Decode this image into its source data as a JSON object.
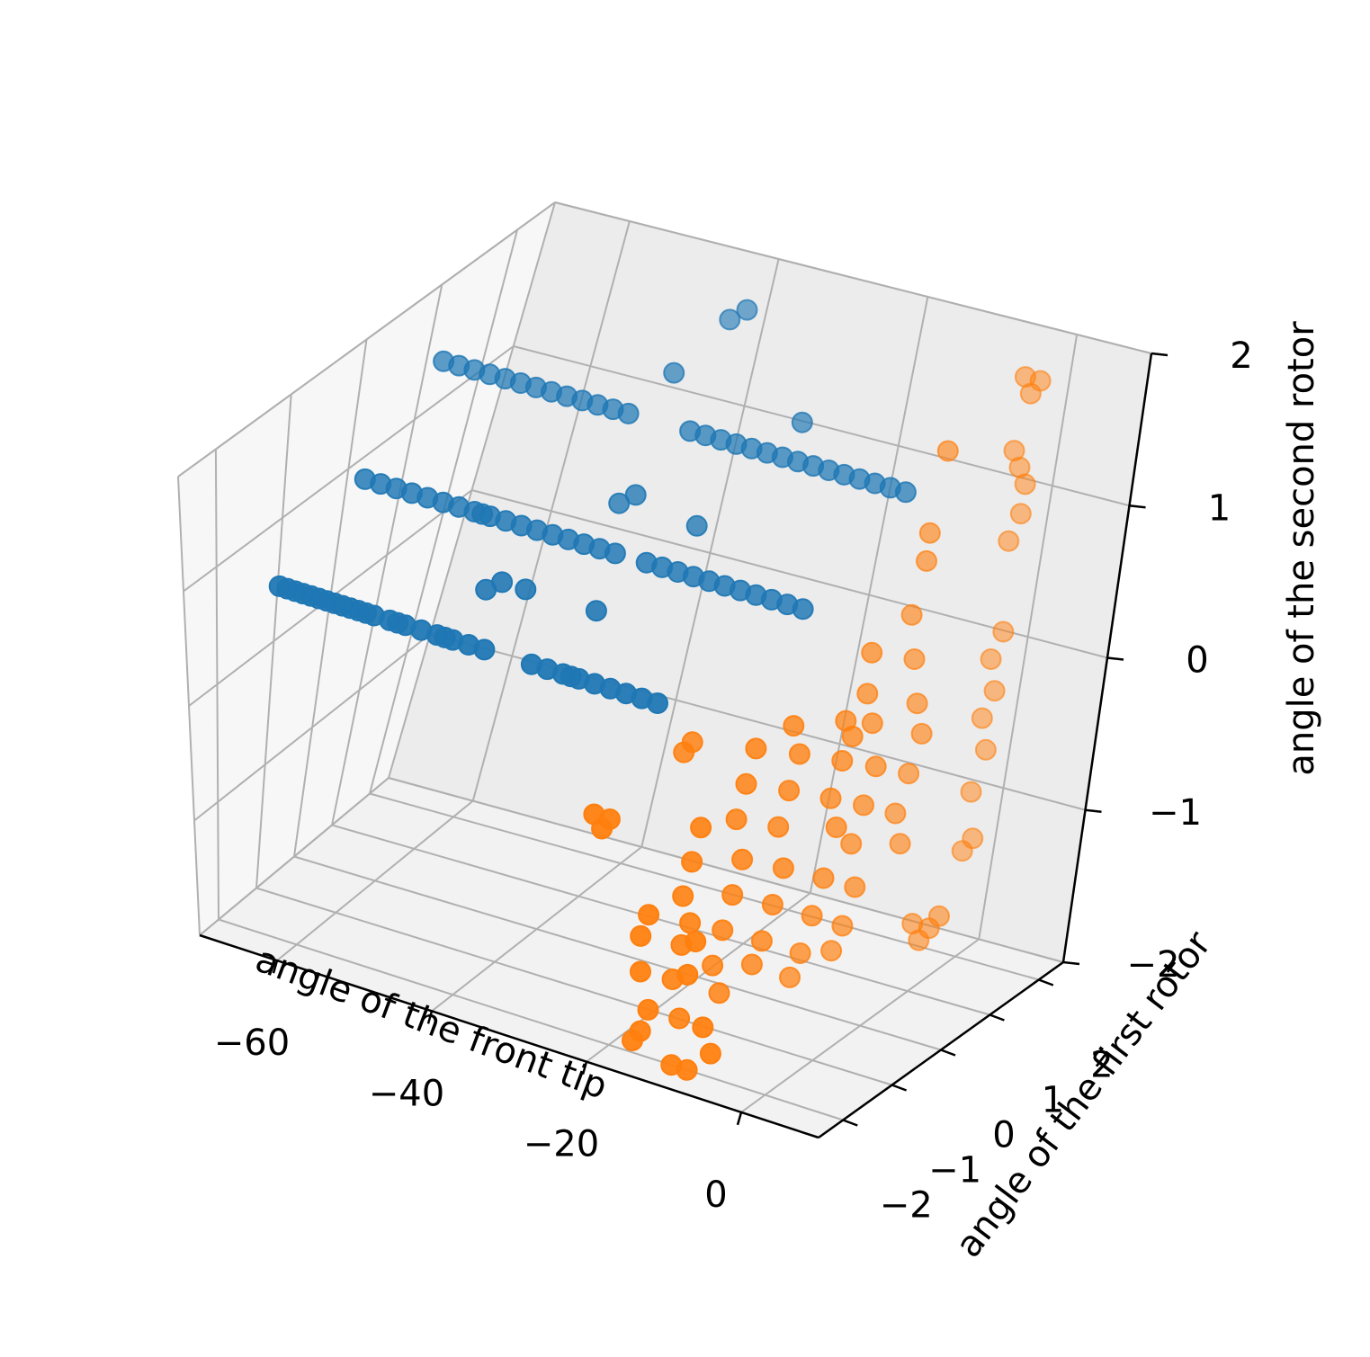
{
  "chart_data": {
    "type": "scatter",
    "projection": "3d",
    "title": "",
    "xlabel": "angle of the front tip",
    "ylabel": "angle of the first rotor",
    "zlabel": "angle of the second rotor",
    "xlim": [
      -70,
      10
    ],
    "ylim": [
      -2.5,
      2.5
    ],
    "zlim": [
      -2,
      2
    ],
    "x_ticks": [
      "−60",
      "−40",
      "−20",
      "0"
    ],
    "x_tick_values": [
      -60,
      -40,
      -20,
      0
    ],
    "y_ticks": [
      "−2",
      "−1",
      "0",
      "1",
      "2"
    ],
    "y_tick_values": [
      -2,
      -1,
      0,
      1,
      2
    ],
    "z_ticks": [
      "−2",
      "−1",
      "0",
      "1",
      "2"
    ],
    "z_tick_values": [
      -2,
      -1,
      0,
      1,
      2
    ],
    "grid": true,
    "legend": "none",
    "series": [
      {
        "color": "#1f77b4",
        "points": [
          [
            -62,
            -2.0,
            1.0
          ],
          [
            -61,
            -2.0,
            1.0
          ],
          [
            -60,
            -2.0,
            1.0
          ],
          [
            -59,
            -2.0,
            1.0
          ],
          [
            -58,
            -2.0,
            1.0
          ],
          [
            -57,
            -2.0,
            1.0
          ],
          [
            -56,
            -2.0,
            1.0
          ],
          [
            -55,
            -2.0,
            1.0
          ],
          [
            -54,
            -2.0,
            1.0
          ],
          [
            -53,
            -2.0,
            1.0
          ],
          [
            -52,
            -2.0,
            1.0
          ],
          [
            -51,
            -2.0,
            1.0
          ],
          [
            -50,
            -2.0,
            1.0
          ],
          [
            -48,
            -2.0,
            1.0
          ],
          [
            -47,
            -2.0,
            1.0
          ],
          [
            -46,
            -2.0,
            1.0
          ],
          [
            -44,
            -2.0,
            1.0
          ],
          [
            -42,
            -2.0,
            1.0
          ],
          [
            -41,
            -2.0,
            1.0
          ],
          [
            -40,
            -2.0,
            1.0
          ],
          [
            -38,
            -2.0,
            1.0
          ],
          [
            -36,
            -2.0,
            1.0
          ],
          [
            -60,
            -1.0,
            1.5
          ],
          [
            -58,
            -1.0,
            1.5
          ],
          [
            -56,
            -1.0,
            1.5
          ],
          [
            -54,
            -1.0,
            1.5
          ],
          [
            -52,
            -1.0,
            1.5
          ],
          [
            -50,
            -1.0,
            1.5
          ],
          [
            -48,
            -1.0,
            1.5
          ],
          [
            -46,
            -1.0,
            1.5
          ],
          [
            -45,
            -1.0,
            1.5
          ],
          [
            -44,
            -1.0,
            1.5
          ],
          [
            -42,
            -1.0,
            1.5
          ],
          [
            -40,
            -1.0,
            1.5
          ],
          [
            -38,
            -1.0,
            1.5
          ],
          [
            -36,
            -1.0,
            1.5
          ],
          [
            -34,
            -1.0,
            1.5
          ],
          [
            -32,
            -1.0,
            1.5
          ],
          [
            -30,
            -1.0,
            1.5
          ],
          [
            -28,
            -1.0,
            1.5
          ],
          [
            -60,
            0.0,
            2.0
          ],
          [
            -58,
            0.0,
            2.0
          ],
          [
            -56,
            0.0,
            2.0
          ],
          [
            -54,
            0.0,
            2.0
          ],
          [
            -52,
            0.0,
            2.0
          ],
          [
            -50,
            0.0,
            2.0
          ],
          [
            -48,
            0.0,
            2.0
          ],
          [
            -46,
            0.0,
            2.0
          ],
          [
            -44,
            0.0,
            2.0
          ],
          [
            -42,
            0.0,
            2.0
          ],
          [
            -40,
            0.0,
            2.0
          ],
          [
            -38,
            0.0,
            2.0
          ],
          [
            -36,
            0.0,
            2.0
          ],
          [
            -30,
            -2.0,
            1.0
          ],
          [
            -28,
            -2.0,
            1.0
          ],
          [
            -26,
            -2.0,
            1.0
          ],
          [
            -25,
            -2.0,
            1.0
          ],
          [
            -24,
            -2.0,
            1.0
          ],
          [
            -22,
            -2.0,
            1.0
          ],
          [
            -20,
            -2.0,
            1.0
          ],
          [
            -18,
            -2.0,
            1.0
          ],
          [
            -16,
            -2.0,
            1.0
          ],
          [
            -14,
            -2.0,
            1.0
          ],
          [
            -24,
            -1.0,
            1.5
          ],
          [
            -22,
            -1.0,
            1.5
          ],
          [
            -20,
            -1.0,
            1.5
          ],
          [
            -18,
            -1.0,
            1.5
          ],
          [
            -16,
            -1.0,
            1.5
          ],
          [
            -14,
            -1.0,
            1.5
          ],
          [
            -12,
            -1.0,
            1.5
          ],
          [
            -10,
            -1.0,
            1.5
          ],
          [
            -8,
            -1.0,
            1.5
          ],
          [
            -6,
            -1.0,
            1.5
          ],
          [
            -4,
            -1.0,
            1.5
          ],
          [
            -28,
            0.0,
            2.0
          ],
          [
            -26,
            0.0,
            2.0
          ],
          [
            -24,
            0.0,
            2.0
          ],
          [
            -22,
            0.0,
            2.0
          ],
          [
            -20,
            0.0,
            2.0
          ],
          [
            -18,
            0.0,
            2.0
          ],
          [
            -16,
            0.0,
            2.0
          ],
          [
            -14,
            0.0,
            2.0
          ],
          [
            -12,
            0.0,
            2.0
          ],
          [
            -10,
            0.0,
            2.0
          ],
          [
            -8,
            0.0,
            2.0
          ],
          [
            -6,
            0.0,
            2.0
          ],
          [
            -4,
            0.0,
            2.0
          ],
          [
            -2,
            0.0,
            2.0
          ],
          [
            0,
            0.0,
            2.0
          ],
          [
            -40,
            -1.5,
            1.2
          ],
          [
            -38,
            -1.5,
            1.3
          ],
          [
            -35,
            -1.5,
            1.3
          ],
          [
            -32,
            -0.5,
            1.6
          ],
          [
            -30,
            -0.5,
            1.7
          ],
          [
            -35,
            0.5,
            2.1
          ],
          [
            -33,
            1.0,
            2.3
          ],
          [
            -31,
            1.0,
            2.4
          ],
          [
            -26,
            -1.5,
            1.3
          ],
          [
            -22,
            -0.5,
            1.6
          ],
          [
            -18,
            0.5,
            2.0
          ]
        ]
      },
      {
        "color": "#ff7f0e",
        "points": [
          [
            -2,
            2.0,
            1.9
          ],
          [
            -1,
            2.0,
            1.8
          ],
          [
            0,
            2.0,
            1.9
          ],
          [
            -2,
            2.0,
            1.4
          ],
          [
            -1,
            2.0,
            1.3
          ],
          [
            0,
            2.0,
            1.2
          ],
          [
            0,
            2.0,
            1.0
          ],
          [
            -1,
            2.0,
            0.8
          ],
          [
            0,
            2.0,
            0.2
          ],
          [
            -1,
            2.0,
            0.0
          ],
          [
            0,
            2.0,
            -0.2
          ],
          [
            -1,
            2.0,
            -0.4
          ],
          [
            0,
            2.0,
            -0.6
          ],
          [
            -1,
            2.0,
            -0.9
          ],
          [
            0,
            2.0,
            -1.2
          ],
          [
            -1,
            2.0,
            -1.3
          ],
          [
            0,
            1.5,
            -1.6
          ],
          [
            -1,
            1.5,
            -1.7
          ],
          [
            -2,
            1.5,
            -1.8
          ],
          [
            -3,
            1.5,
            -1.7
          ],
          [
            -3,
            1.0,
            1.8
          ],
          [
            -4,
            1.0,
            1.2
          ],
          [
            -4,
            1.0,
            1.0
          ],
          [
            -5,
            1.0,
            0.6
          ],
          [
            -4,
            1.0,
            0.3
          ],
          [
            -3,
            1.0,
            0.0
          ],
          [
            -2,
            1.0,
            -0.2
          ],
          [
            -3,
            1.0,
            -0.5
          ],
          [
            -4,
            1.0,
            -0.8
          ],
          [
            -3,
            1.0,
            -1.0
          ],
          [
            -6,
            0.5,
            0.5
          ],
          [
            -6,
            0.5,
            0.2
          ],
          [
            -5,
            0.5,
            0.0
          ],
          [
            -4,
            0.5,
            -0.3
          ],
          [
            -5,
            0.5,
            -0.6
          ],
          [
            -6,
            0.5,
            -0.9
          ],
          [
            -5,
            0.5,
            -1.2
          ],
          [
            -6,
            0.5,
            -1.5
          ],
          [
            -7,
            0.5,
            -1.7
          ],
          [
            -5,
            0.0,
            0.2
          ],
          [
            -4,
            0.0,
            0.1
          ],
          [
            -5,
            0.0,
            -0.1
          ],
          [
            -6,
            0.0,
            -0.4
          ],
          [
            -5,
            0.0,
            -0.6
          ],
          [
            -6,
            0.0,
            -1.0
          ],
          [
            -7,
            0.0,
            -1.3
          ],
          [
            -8,
            0.0,
            -1.6
          ],
          [
            -9,
            0.0,
            -1.8
          ],
          [
            -8,
            -0.5,
            0.3
          ],
          [
            -7,
            -0.5,
            0.1
          ],
          [
            -8,
            -0.5,
            -0.2
          ],
          [
            -9,
            -0.5,
            -0.5
          ],
          [
            -8,
            -0.5,
            -0.8
          ],
          [
            -9,
            -0.5,
            -1.1
          ],
          [
            -10,
            -0.5,
            -1.4
          ],
          [
            -11,
            -0.5,
            -1.6
          ],
          [
            -9,
            -1.0,
            0.3
          ],
          [
            -10,
            -1.0,
            0.0
          ],
          [
            -11,
            -1.0,
            -0.3
          ],
          [
            -10,
            -1.0,
            -0.6
          ],
          [
            -11,
            -1.0,
            -0.9
          ],
          [
            -12,
            -1.0,
            -1.2
          ],
          [
            -13,
            -1.0,
            -1.5
          ],
          [
            -12,
            -1.0,
            -1.7
          ],
          [
            -12,
            -1.5,
            -0.2
          ],
          [
            -13,
            -1.5,
            -0.5
          ],
          [
            -14,
            -1.5,
            -0.8
          ],
          [
            -13,
            -1.5,
            -1.0
          ],
          [
            -14,
            -1.5,
            -1.2
          ],
          [
            -15,
            -1.5,
            -1.5
          ],
          [
            -14,
            -1.5,
            -1.8
          ],
          [
            -15,
            -2.0,
            -0.8
          ],
          [
            -16,
            -2.0,
            -1.0
          ],
          [
            -16,
            -2.0,
            -1.3
          ],
          [
            -15,
            -2.0,
            -1.6
          ],
          [
            -16,
            -2.0,
            -1.8
          ],
          [
            -17,
            -2.0,
            -1.9
          ],
          [
            -9,
            -2.0,
            -0.9
          ],
          [
            -10,
            -2.0,
            -1.2
          ],
          [
            -8,
            -2.0,
            -1.6
          ],
          [
            -7,
            -2.0,
            -1.8
          ],
          [
            -10,
            -2.0,
            -2.0
          ],
          [
            -12,
            -2.0,
            -2.0
          ],
          [
            -18,
            -1.0,
            0.1
          ],
          [
            -17,
            -1.0,
            0.2
          ],
          [
            -22,
            -2.0,
            -0.1
          ],
          [
            -21,
            -2.0,
            -0.2
          ],
          [
            -20,
            -2.0,
            -0.1
          ]
        ]
      }
    ]
  }
}
